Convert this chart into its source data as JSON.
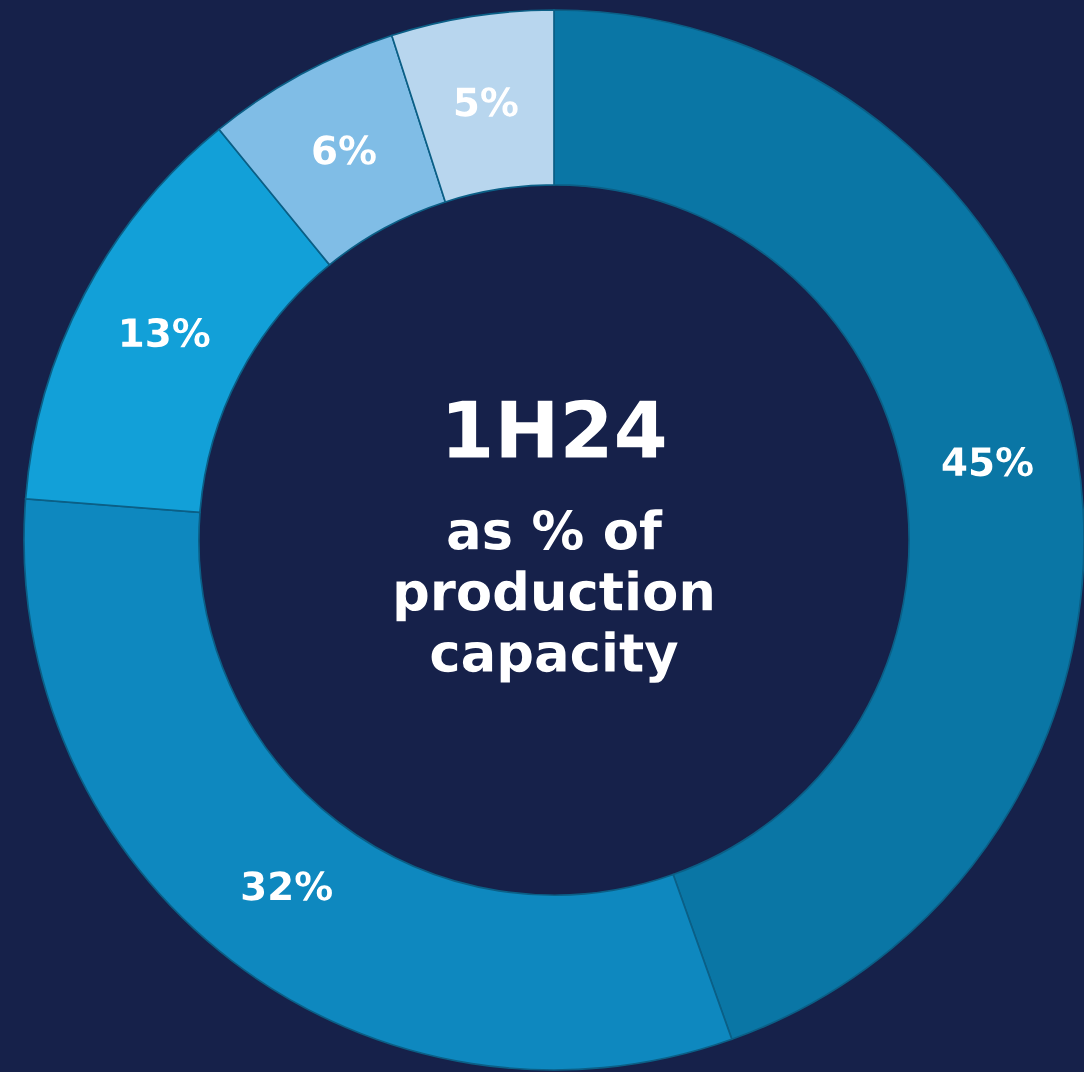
{
  "chart_data": {
    "type": "donut",
    "title": "1H24",
    "subtitle": "as % of\nproduction\ncapacity",
    "categories": [
      null,
      null,
      null,
      null,
      null
    ],
    "values": [
      45,
      32,
      13,
      6,
      5
    ],
    "colors": [
      "#0a76a5",
      "#0e88bf",
      "#12a0d8",
      "#80bde6",
      "#b8d6ee"
    ],
    "value_labels": [
      "45%",
      "32%",
      "13%",
      "6%",
      "5%"
    ],
    "legend": false
  }
}
